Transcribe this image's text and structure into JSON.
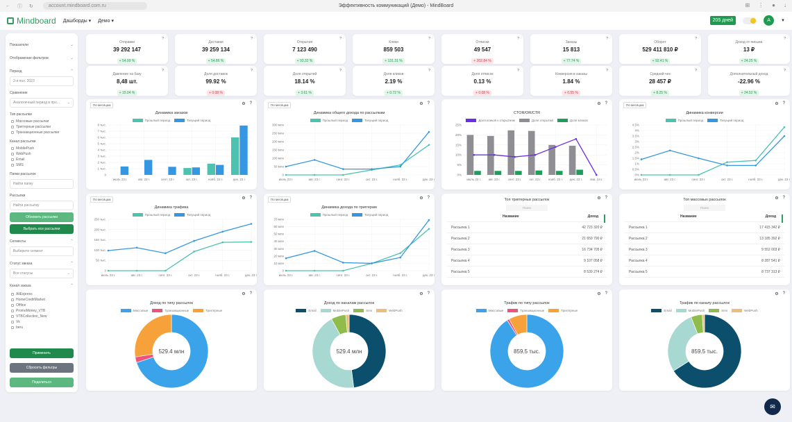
{
  "browser": {
    "url": "account.mindboard.com.ru",
    "title": "Эффективность коммуникаций (Демо) - MindBoard"
  },
  "header": {
    "logo": "Mindboard",
    "menu": [
      "Дашборды ▾",
      "Демо ▾"
    ],
    "days": "205 дней",
    "avatar": "А"
  },
  "sidebar": {
    "indicators": "Показатели",
    "filters_display": "Отображение фильтров",
    "period_label": "Период",
    "period_value": "2-я пол. 2023",
    "compare_label": "Сравнение",
    "compare_value": "Аналогичный период в про...",
    "type_label": "Тип рассылки",
    "types": [
      "Массовые рассылки",
      "Триггерные рассылки",
      "Транзакционные рассылки"
    ],
    "channel_label": "Канал рассылки",
    "channels": [
      "MobilePush",
      "WebPush",
      "Email",
      "SMS"
    ],
    "folders_label": "Папки рассылок",
    "folders_placeholder": "Найти папку",
    "mailings_label": "Рассылки",
    "mailings_placeholder": "Найти рассылку",
    "refresh_btn": "Обновить рассылки",
    "select_all_btn": "Выбрать все рассылки",
    "segments_label": "Сегменты",
    "segments_placeholder": "Выберите сегмент",
    "status_label": "Статус заказа",
    "status_value": "Все статусы",
    "order_channel_label": "Канал заказа",
    "order_channels": [
      "AliExpress",
      "HomeCreditMarket",
      "Offline",
      "PromoMoney_VTB",
      "VTBCollection_New",
      "Vk",
      "beru"
    ],
    "apply_btn": "Применить",
    "reset_btn": "Сбросить фильтры",
    "share_btn": "Поделиться"
  },
  "kpis": [
    {
      "label": "Отправки",
      "value": "39 292 147",
      "delta": "+ 54.99 %",
      "trend": "up"
    },
    {
      "label": "Доставки",
      "value": "39 259 134",
      "delta": "+ 54.86 %",
      "trend": "up"
    },
    {
      "label": "Открытия",
      "value": "7 123 490",
      "delta": "+ 93.32 %",
      "trend": "up"
    },
    {
      "label": "Клики",
      "value": "859 503",
      "delta": "+ 131.31 %",
      "trend": "up"
    },
    {
      "label": "Отписки",
      "value": "49 547",
      "delta": "+ 202.84 %",
      "trend": "down"
    },
    {
      "label": "Заказы",
      "value": "15 813",
      "delta": "+ 77.74 %",
      "trend": "up"
    },
    {
      "label": "Оборот",
      "value": "529 411 810 ₽",
      "delta": "+ 92.41 %",
      "trend": "up"
    },
    {
      "label": "Доход от письма",
      "value": "13 ₽",
      "delta": "+ 24.25 %",
      "trend": "up"
    },
    {
      "label": "Давление на базу",
      "value": "8,48 шт.",
      "delta": "+ 15.04 %",
      "trend": "up"
    },
    {
      "label": "Доля доставок",
      "value": "99.92 %",
      "delta": "+ 0.08 %",
      "trend": "down"
    },
    {
      "label": "Доля открытий",
      "value": "18.14 %",
      "delta": "+ 3.61 %",
      "trend": "up"
    },
    {
      "label": "Доля кликов",
      "value": "2.19 %",
      "delta": "+ 0.72 %",
      "trend": "up"
    },
    {
      "label": "Доля отписок",
      "value": "0.13 %",
      "delta": "+ 0.08 %",
      "trend": "down"
    },
    {
      "label": "Конверсия в заказы",
      "value": "1.84 %",
      "delta": "+ 0.55 %",
      "trend": "down"
    },
    {
      "label": "Средний чек",
      "value": "28 457 ₽",
      "delta": "+ 8.25 %",
      "trend": "up"
    },
    {
      "label": "Дополнительный доход",
      "value": "-22.96 %",
      "delta": "+ 24.52 %",
      "trend": "up"
    }
  ],
  "colors": {
    "brand": "#2e9e5e",
    "up": "#1f9a50",
    "down": "#e0334c",
    "prev": "#4cc2b1",
    "cur": "#3597e2"
  },
  "period_select": "По месяцам",
  "chart_data": [
    {
      "type": "bar",
      "title": "Динамика заказов",
      "categories": [
        "июль 23 г.",
        "авг. 23 г.",
        "сент. 23 г.",
        "окт. 23 г.",
        "нояб. 23 г.",
        "дек. 23 г."
      ],
      "ylim": [
        0,
        8
      ],
      "yticks": [
        "0",
        "1 тыс.",
        "2 тыс.",
        "3 тыс.",
        "4 тыс.",
        "5 тыс.",
        "6 тыс.",
        "7 тыс.",
        "8 тыс."
      ],
      "series": [
        {
          "name": "Прошлый период",
          "color": "#4cc2b1",
          "values": [
            0,
            0,
            0,
            1.1,
            1.8,
            6.0
          ]
        },
        {
          "name": "Текущий период",
          "color": "#3597e2",
          "values": [
            1.35,
            2.4,
            1.3,
            1.2,
            1.6,
            7.9
          ]
        }
      ]
    },
    {
      "type": "line",
      "title": "Динамика общего дохода по рассылкам",
      "categories": [
        "июль 23 г.",
        "авг. 23 г.",
        "сент. 23 г.",
        "окт. 23 г.",
        "нояб. 23 г.",
        "дек. 23 г."
      ],
      "ylim": [
        0,
        300
      ],
      "yticks": [
        "0",
        "50 млн",
        "100 млн",
        "150 млн",
        "200 млн",
        "250 млн",
        "300 млн"
      ],
      "series": [
        {
          "name": "Прошлый период",
          "color": "#4cc2b1",
          "values": [
            0,
            0,
            0,
            30,
            60,
            180
          ]
        },
        {
          "name": "Текущий период",
          "color": "#3597e2",
          "values": [
            50,
            90,
            35,
            35,
            50,
            258
          ]
        }
      ]
    },
    {
      "type": "combo",
      "title": "CTOR/OR/CTR",
      "categories": [
        "июль 23 г.",
        "авг. 23 г.",
        "сент. 23 г.",
        "окт. 23 г.",
        "нояб. 23 г.",
        "дек. 23 г.",
        "янв. 24 г."
      ],
      "ylim": [
        0,
        25
      ],
      "yticks": [
        "0%",
        "5%",
        "10%",
        "15%",
        "20%",
        "25%"
      ],
      "series": [
        {
          "name": "Доля кликов к открытиям",
          "kind": "line",
          "color": "#6a2ee8",
          "values": [
            10,
            10,
            9,
            10,
            14,
            18,
            0
          ]
        },
        {
          "name": "Доля открытий",
          "kind": "bar",
          "color": "#8e8e93",
          "values": [
            20,
            19.5,
            22.3,
            22,
            15,
            14.6,
            0
          ]
        },
        {
          "name": "Доля кликов",
          "kind": "bar",
          "color": "#1f9d5b",
          "values": [
            2,
            2,
            2,
            2.2,
            2,
            2.6,
            0
          ]
        }
      ]
    },
    {
      "type": "line",
      "title": "Динамика конверсии",
      "categories": [
        "июль 23 г.",
        "авг. 23 г.",
        "сент. 23 г.",
        "окт. 23 г.",
        "нояб. 23 г.",
        "дек. 23 г."
      ],
      "ylim": [
        0,
        4.5
      ],
      "yticks": [
        "0%",
        "0.5%",
        "1%",
        "1.5%",
        "2%",
        "2.5%",
        "3%",
        "3.5%",
        "4%",
        "4.5%"
      ],
      "series": [
        {
          "name": "Прошлый период",
          "color": "#4cc2b1",
          "values": [
            0,
            0,
            0,
            1.15,
            1.3,
            4.3
          ]
        },
        {
          "name": "Текущий период",
          "color": "#3597e2",
          "values": [
            1.4,
            2.2,
            1.5,
            0.85,
            0.85,
            3.5
          ]
        }
      ]
    },
    {
      "type": "line",
      "title": "Динамика трафика",
      "categories": [
        "июль 23 г.",
        "авг. 23 г.",
        "сент. 23 г.",
        "окт. 23 г.",
        "нояб. 23 г.",
        "дек. 23 г."
      ],
      "ylim": [
        0,
        250
      ],
      "yticks": [
        "0",
        "50 тыс.",
        "100 тыс.",
        "150 тыс.",
        "200 тыс.",
        "250 тыс."
      ],
      "series": [
        {
          "name": "Прошлый период",
          "color": "#4cc2b1",
          "values": [
            0,
            0,
            0,
            93,
            138,
            140
          ]
        },
        {
          "name": "Текущий период",
          "color": "#3597e2",
          "values": [
            98,
            112,
            85,
            145,
            190,
            228
          ]
        }
      ]
    },
    {
      "type": "line",
      "title": "Динамика дохода по триггерам",
      "categories": [
        "июль 23 г.",
        "авг. 23 г.",
        "сент. 23 г.",
        "окт. 23 г.",
        "нояб. 23 г.",
        "дек. 23 г."
      ],
      "ylim": [
        0,
        70
      ],
      "yticks": [
        "0",
        "10 млн",
        "20 млн",
        "30 млн",
        "40 млн",
        "50 млн",
        "60 млн",
        "70 млн"
      ],
      "series": [
        {
          "name": "Прошлый период",
          "color": "#4cc2b1",
          "values": [
            0,
            0,
            0,
            10,
            24,
            57
          ]
        },
        {
          "name": "Текущий период",
          "color": "#3597e2",
          "values": [
            17,
            27,
            11,
            10,
            18,
            69
          ]
        }
      ]
    },
    {
      "type": "table",
      "title": "Топ триггерных рассылок",
      "search": "Поиск",
      "columns": [
        "Название",
        "Доход"
      ],
      "rows": [
        [
          "Рассылка 1",
          "42 723 320 ₽"
        ],
        [
          "Рассылка 2",
          "21 659 790 ₽"
        ],
        [
          "Рассылка 3",
          "16 734 705 ₽"
        ],
        [
          "Рассылка 4",
          "9 107 058 ₽"
        ],
        [
          "Рассылка 5",
          "8 539 274 ₽"
        ]
      ]
    },
    {
      "type": "table",
      "title": "Топ массовых рассылок",
      "search": "Поиск",
      "columns": [
        "Название",
        "Доход"
      ],
      "rows": [
        [
          "Рассылка 1",
          "17 415 342 ₽"
        ],
        [
          "Рассылка 2",
          "13 185 392 ₽"
        ],
        [
          "Рассылка 3",
          "9 552 003 ₽"
        ],
        [
          "Рассылка 4",
          "8 287 541 ₽"
        ],
        [
          "Рассылка 5",
          "8 737 313 ₽"
        ]
      ]
    },
    {
      "type": "pie",
      "title": "Доход по типу рассылок",
      "center": "529.4 млн",
      "labels": [
        "Массовые",
        "Транзакционные",
        "Триггерные"
      ],
      "values": [
        70,
        2.5,
        27.5
      ],
      "colors": [
        "#3aa3ea",
        "#f0527a",
        "#f7a13a"
      ]
    },
    {
      "type": "pie",
      "title": "Доход по каналам рассылок",
      "center": "529.4 млн",
      "labels": [
        "Email",
        "MobilePush",
        "Sms",
        "WebPush"
      ],
      "values": [
        48,
        44,
        6.5,
        1.5
      ],
      "colors": [
        "#0b4f6c",
        "#a8d8d2",
        "#8fbc4a",
        "#e8c07a"
      ]
    },
    {
      "type": "pie",
      "title": "Трафик по типу рассылок",
      "center": "859.5 тыс.",
      "labels": [
        "Массовые",
        "Транзакционные",
        "Триггерные"
      ],
      "values": [
        91,
        1,
        8
      ],
      "colors": [
        "#3aa3ea",
        "#f0527a",
        "#f7a13a"
      ]
    },
    {
      "type": "pie",
      "title": "Трафик по каналу рассылок",
      "center": "859.5 тыс.",
      "labels": [
        "Email",
        "MobilePush",
        "Sms",
        "WebPush"
      ],
      "values": [
        66,
        28,
        5,
        1
      ],
      "colors": [
        "#0b4f6c",
        "#a8d8d2",
        "#8fbc4a",
        "#e8c07a"
      ]
    }
  ]
}
